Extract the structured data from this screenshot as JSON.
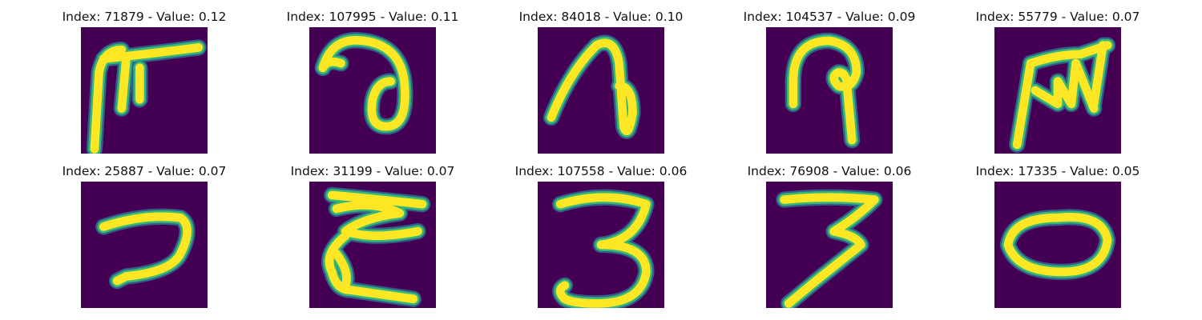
{
  "panels": [
    {
      "title": "Index: 71879 - Value: 0.12",
      "glyph": "F-like"
    },
    {
      "title": "Index: 107995 - Value: 0.11",
      "glyph": "a-loop"
    },
    {
      "title": "Index: 84018 - Value: 0.10",
      "glyph": "n-loop"
    },
    {
      "title": "Index: 104537 - Value: 0.09",
      "glyph": "P-like"
    },
    {
      "title": "Index: 55779 - Value: 0.07",
      "glyph": "M-like"
    },
    {
      "title": "Index: 25887 - Value: 0.07",
      "glyph": "7-like"
    },
    {
      "title": "Index: 31199 - Value: 0.07",
      "glyph": "zigzag"
    },
    {
      "title": "Index: 107558 - Value: 0.06",
      "glyph": "3-like"
    },
    {
      "title": "Index: 76908 - Value: 0.06",
      "glyph": "3-slanted"
    },
    {
      "title": "Index: 17335 - Value: 0.05",
      "glyph": "0-oval"
    }
  ],
  "colors": {
    "background": "#440154",
    "stroke_core": "#fde725",
    "stroke_edge": "#35b779",
    "stroke_halo": "#31688e",
    "title_text": "#111111"
  }
}
